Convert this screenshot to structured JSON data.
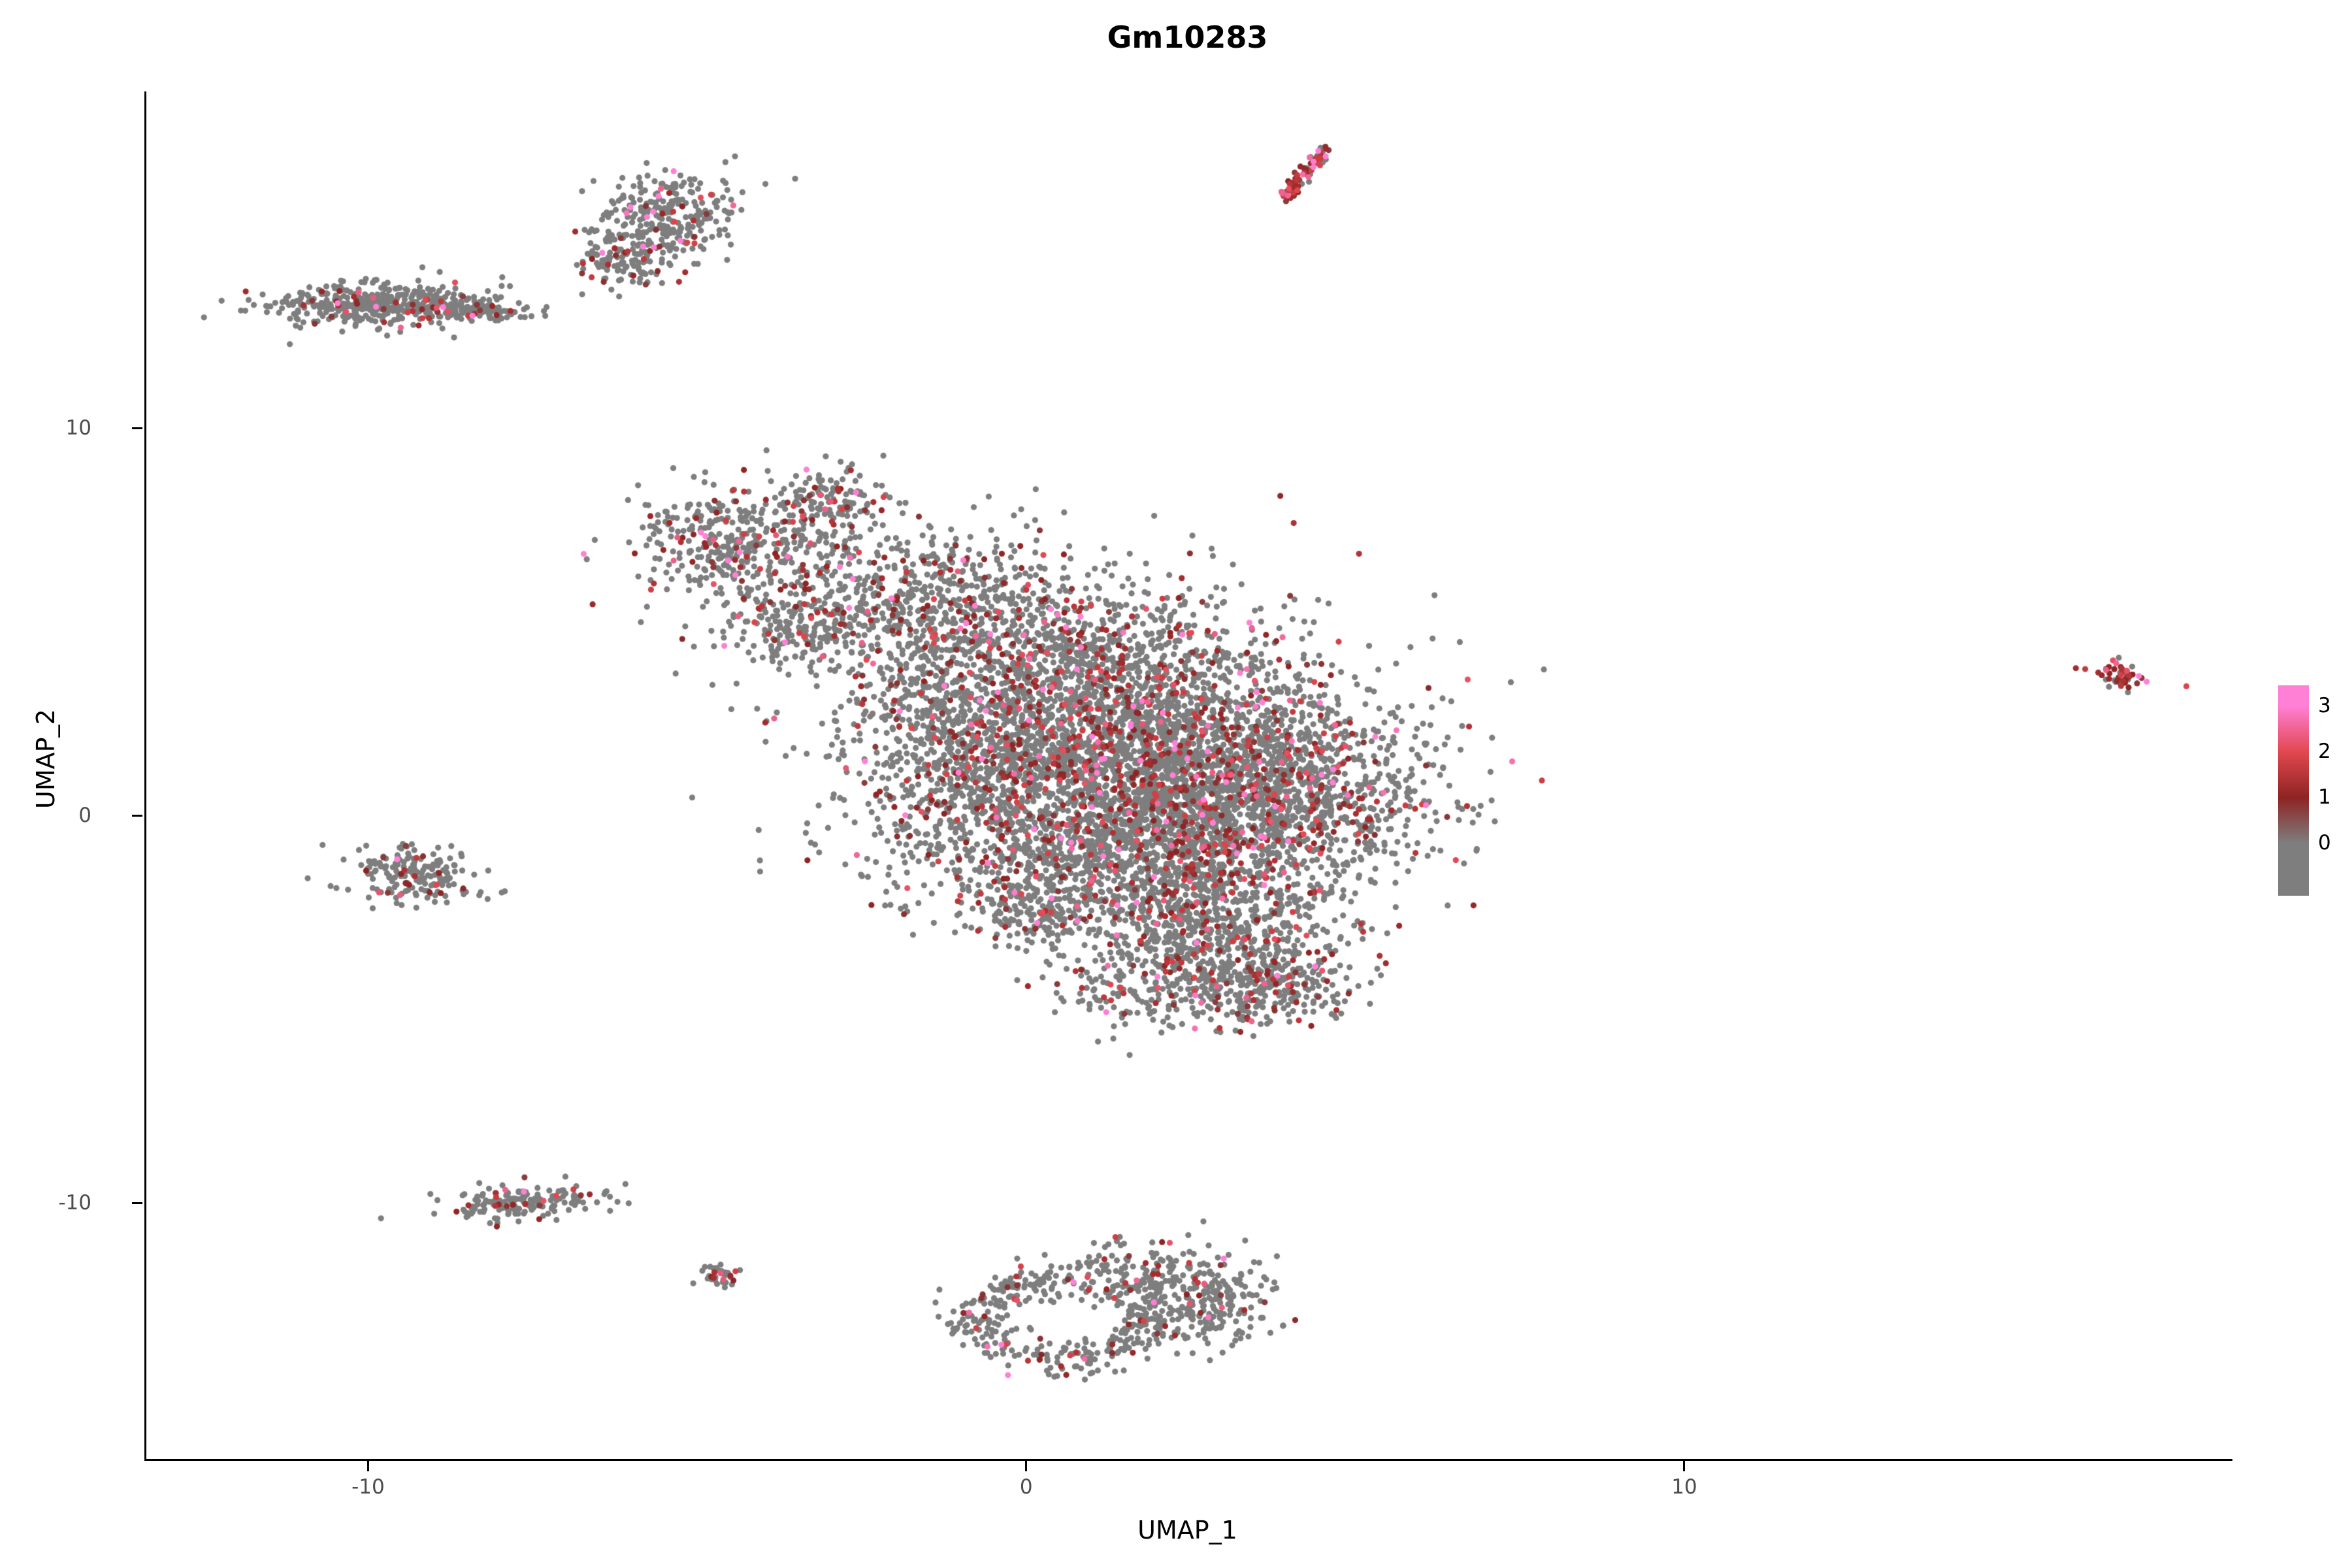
{
  "title": "Gm10283",
  "chart_data": {
    "type": "scatter",
    "title": "Gm10283",
    "xlabel": "UMAP_1",
    "ylabel": "UMAP_2",
    "xlim": [
      -13.4,
      18.3
    ],
    "ylim": [
      -16.6,
      18.7
    ],
    "x_ticks": [
      -10,
      0,
      10
    ],
    "y_ticks": [
      10,
      0,
      -10
    ],
    "grid": false,
    "background": "#ffffff",
    "point_radius": 4.6,
    "seed": 12345,
    "color_stops": [
      {
        "value": 0,
        "color": "#7e7e7e"
      },
      {
        "value": 1,
        "color": "#8e2323"
      },
      {
        "value": 2,
        "color": "#e1484f"
      },
      {
        "value": 3,
        "color": "#ff80d5"
      }
    ],
    "legend": {
      "position": "right",
      "breaks": [
        3,
        2,
        1,
        0
      ],
      "bar_value_range": [
        3.45,
        -1.15
      ]
    },
    "clusters": [
      {
        "type": "gauss",
        "cx": -4.4,
        "cy": 6.9,
        "sx": 0.85,
        "sy": 0.75,
        "n": 420,
        "rot": -0.3,
        "expr_rate": 0.15
      },
      {
        "type": "gauss",
        "cx": -3.0,
        "cy": 8.1,
        "sx": 0.45,
        "sy": 0.5,
        "n": 140,
        "rot": 0,
        "expr_rate": 0.15
      },
      {
        "type": "gauss",
        "cx": -3.5,
        "cy": 4.8,
        "sx": 0.55,
        "sy": 0.45,
        "n": 150,
        "rot": 0,
        "expr_rate": 0.12
      },
      {
        "type": "gauss",
        "cx": -1.7,
        "cy": 5.7,
        "sx": 1.0,
        "sy": 0.9,
        "n": 380,
        "rot": 0,
        "expr_rate": 0.15
      },
      {
        "type": "gauss",
        "cx": 0.2,
        "cy": 3.9,
        "sx": 1.7,
        "sy": 1.4,
        "n": 1300,
        "rot": 0,
        "expr_rate": 0.17
      },
      {
        "type": "gauss",
        "cx": 1.7,
        "cy": 1.7,
        "sx": 1.9,
        "sy": 1.5,
        "n": 2100,
        "rot": 0,
        "expr_rate": 0.17
      },
      {
        "type": "gauss",
        "cx": 3.3,
        "cy": 0.4,
        "sx": 1.4,
        "sy": 1.2,
        "n": 1400,
        "rot": 0,
        "expr_rate": 0.17
      },
      {
        "type": "gauss",
        "cx": 1.1,
        "cy": -1.1,
        "sx": 1.5,
        "sy": 1.0,
        "n": 950,
        "rot": 0,
        "expr_rate": 0.15
      },
      {
        "type": "gauss",
        "cx": 2.8,
        "cy": -3.0,
        "sx": 1.0,
        "sy": 0.9,
        "n": 650,
        "rot": 0,
        "expr_rate": 0.15
      },
      {
        "type": "gauss",
        "cx": 3.8,
        "cy": -4.3,
        "sx": 0.6,
        "sy": 0.5,
        "n": 240,
        "rot": 0,
        "expr_rate": 0.15
      },
      {
        "type": "gauss",
        "cx": 2.0,
        "cy": -4.6,
        "sx": 0.9,
        "sy": 0.5,
        "n": 160,
        "rot": 0,
        "expr_rate": 0.12
      },
      {
        "type": "gauss",
        "cx": 0.1,
        "cy": -2.6,
        "sx": 0.45,
        "sy": 0.45,
        "n": 130,
        "rot": 0,
        "expr_rate": 0.12
      },
      {
        "type": "gauss",
        "cx": -0.9,
        "cy": 1.3,
        "sx": 0.9,
        "sy": 1.3,
        "n": 450,
        "rot": 0,
        "expr_rate": 0.15
      },
      {
        "type": "gauss",
        "cx": -9.9,
        "cy": 13.2,
        "sx": 0.8,
        "sy": 0.28,
        "n": 420,
        "rot": 0.05,
        "expr_rate": 0.1
      },
      {
        "type": "gauss",
        "cx": -8.4,
        "cy": 13.05,
        "sx": 0.5,
        "sy": 0.15,
        "n": 110,
        "rot": 0,
        "expr_rate": 0.08
      },
      {
        "type": "gauss",
        "cx": -5.5,
        "cy": 15.5,
        "sx": 0.6,
        "sy": 0.5,
        "n": 280,
        "rot": 0.5,
        "expr_rate": 0.12
      },
      {
        "type": "gauss",
        "cx": -6.1,
        "cy": 14.3,
        "sx": 0.35,
        "sy": 0.35,
        "n": 110,
        "rot": 0,
        "expr_rate": 0.12
      },
      {
        "type": "line",
        "x1": 3.85,
        "y1": 15.9,
        "x2": 4.5,
        "y2": 17.2,
        "jitter": 0.07,
        "n": 85,
        "expr_rate": 0.75
      },
      {
        "type": "gauss",
        "cx": -9.3,
        "cy": -1.5,
        "sx": 0.42,
        "sy": 0.38,
        "n": 190,
        "rot": -0.3,
        "expr_rate": 0.12
      },
      {
        "type": "gauss",
        "cx": -7.7,
        "cy": -10.0,
        "sx": 0.55,
        "sy": 0.22,
        "n": 170,
        "rot": 0.15,
        "expr_rate": 0.1
      },
      {
        "type": "gauss",
        "cx": -4.7,
        "cy": -11.9,
        "sx": 0.16,
        "sy": 0.14,
        "n": 40,
        "rot": 0,
        "expr_rate": 0.15
      },
      {
        "type": "ring",
        "cx": 0.55,
        "cy": -13.0,
        "rx": 1.35,
        "ry": 1.05,
        "thick": 0.3,
        "n": 380,
        "expr_rate": 0.1
      },
      {
        "type": "gauss",
        "cx": 2.2,
        "cy": -11.9,
        "sx": 0.75,
        "sy": 0.45,
        "n": 210,
        "rot": -0.35,
        "expr_rate": 0.1
      },
      {
        "type": "gauss",
        "cx": 2.75,
        "cy": -12.9,
        "sx": 0.45,
        "sy": 0.4,
        "n": 110,
        "rot": 0,
        "expr_rate": 0.1
      },
      {
        "type": "gauss",
        "cx": 16.6,
        "cy": 3.6,
        "sx": 0.22,
        "sy": 0.16,
        "n": 48,
        "rot": -0.5,
        "expr_rate": 0.65
      }
    ]
  }
}
